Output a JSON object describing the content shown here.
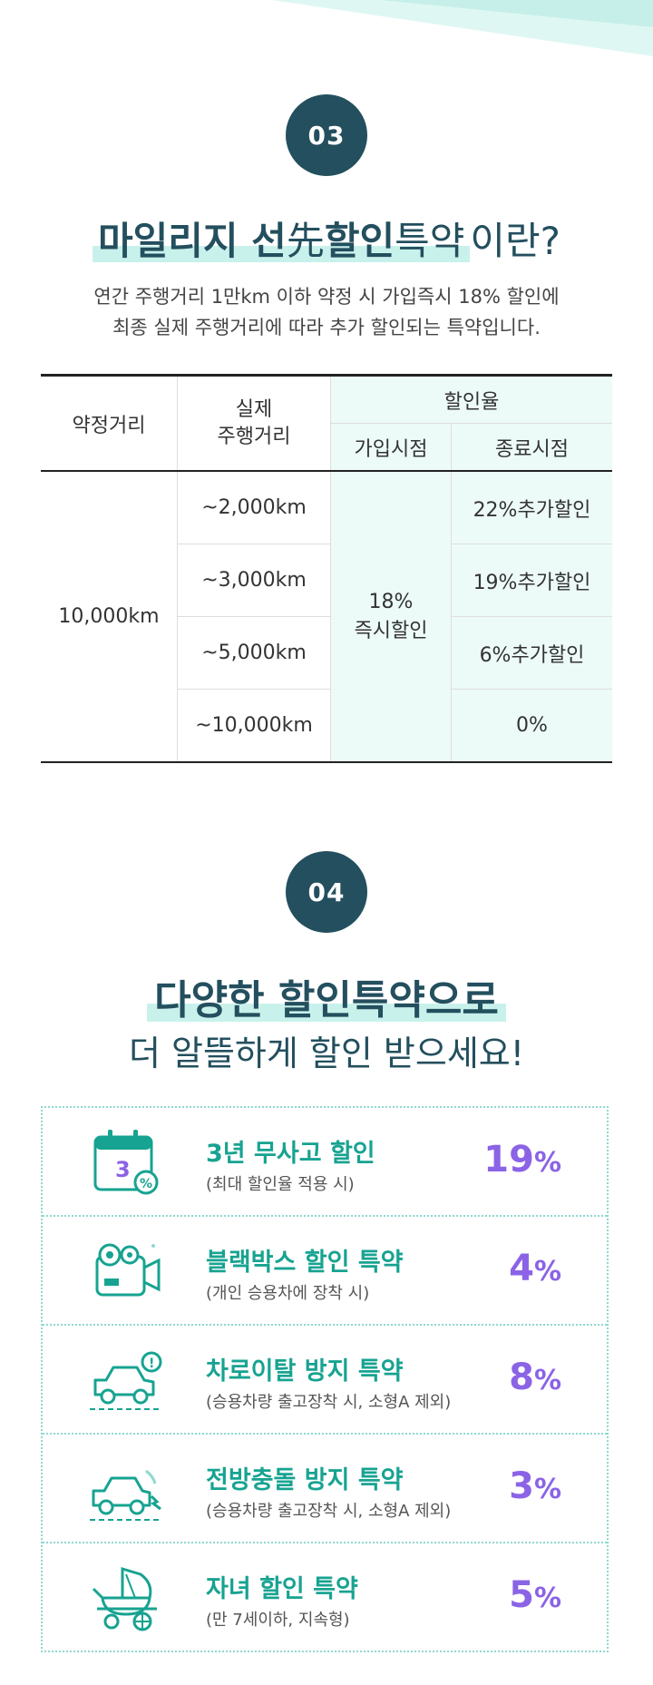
{
  "section3": {
    "badge": "03",
    "title_bold": "마일리지 선",
    "title_hanja": "先",
    "title_bold2": "할인",
    "title_light": "특약",
    "title_tail": "이란?",
    "desc_line1": "연간 주행거리 1만km 이하 약정 시  가입즉시 18% 할인에",
    "desc_line2": "최종 실제 주행거리에 따라 추가 할인되는 특약입니다.",
    "table": {
      "col_contract": "약정거리",
      "col_actual": "실제\n주행거리",
      "col_rate": "할인율",
      "col_join": "가입시점",
      "col_end": "종료시점",
      "contract_value": "10,000km",
      "join_value": "18%\n즉시할인",
      "rows": [
        {
          "actual": "~2,000km",
          "end": "22%추가할인"
        },
        {
          "actual": "~3,000km",
          "end": "19%추가할인"
        },
        {
          "actual": "~5,000km",
          "end": "6%추가할인"
        },
        {
          "actual": "~10,000km",
          "end": "0%"
        }
      ]
    }
  },
  "section4": {
    "badge": "04",
    "title_line1": "다양한 할인특약으로",
    "title_line2": "더 알뜰하게 할인 받으세요!",
    "items": [
      {
        "name": "3년 무사고 할인",
        "note": "(최대 할인율 적용 시)",
        "pct": "19",
        "icon": "calendar-percent-icon"
      },
      {
        "name": "블랙박스 할인 특약",
        "note": "(개인 승용차에 장착 시)",
        "pct": "4",
        "icon": "dashcam-icon"
      },
      {
        "name": "차로이탈 방지 특약",
        "note": "(승용차량 출고장착 시, 소형A 제외)",
        "pct": "8",
        "icon": "lane-departure-car-icon"
      },
      {
        "name": "전방충돌 방지 특약",
        "note": "(승용차량 출고장착 시, 소형A 제외)",
        "pct": "3",
        "icon": "forward-collision-car-icon"
      },
      {
        "name": "자녀 할인 특약",
        "note": "(만 7세이하, 지속형)",
        "pct": "5",
        "icon": "baby-stroller-icon"
      }
    ],
    "pct_symbol": "%"
  },
  "colors": {
    "navy": "#234f5e",
    "mint": "#17a391",
    "purple": "#8b63e6",
    "mint_bg": "#edfbf8"
  }
}
